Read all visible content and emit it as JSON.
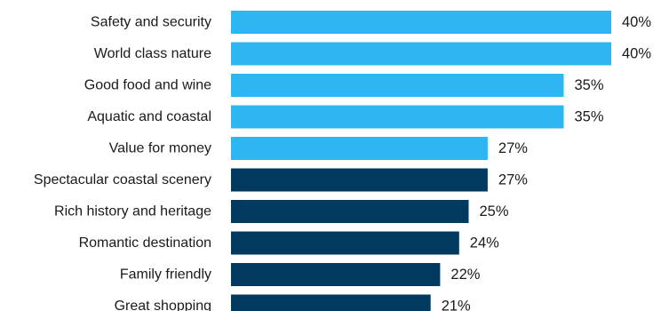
{
  "chart_data": {
    "type": "bar",
    "orientation": "horizontal",
    "categories": [
      "Safety and security",
      "World class nature",
      "Good food and wine",
      "Aquatic and coastal",
      "Value for money",
      "Spectacular coastal scenery",
      "Rich history and heritage",
      "Romantic destination",
      "Family friendly",
      "Great shopping"
    ],
    "values": [
      40,
      40,
      35,
      35,
      27,
      27,
      25,
      24,
      22,
      21
    ],
    "value_labels": [
      "40%",
      "40%",
      "35%",
      "35%",
      "27%",
      "27%",
      "25%",
      "24%",
      "22%",
      "21%"
    ],
    "colors": [
      "#2eb6f2",
      "#2eb6f2",
      "#2eb6f2",
      "#2eb6f2",
      "#2eb6f2",
      "#023a5f",
      "#023a5f",
      "#023a5f",
      "#023a5f",
      "#023a5f"
    ],
    "title": "",
    "xlabel": "",
    "ylabel": "",
    "xlim": [
      0,
      40
    ],
    "grid": false,
    "legend": "none"
  }
}
